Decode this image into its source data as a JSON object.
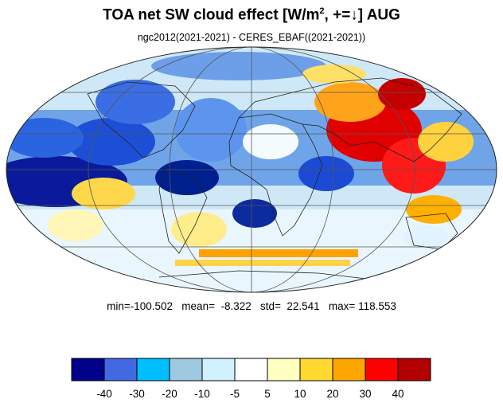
{
  "title": {
    "main": "TOA net SW cloud effect [W/m",
    "sup": "2",
    "rest": ", +=↓]  AUG"
  },
  "subtitle": "ngc2012(2021-2021) - CERES_EBAF((2021-2021))",
  "stats": {
    "text": "min=-100.502   mean=  -8.322   std=  22.541   max= 118.553",
    "min": -100.502,
    "mean": -8.322,
    "std": 22.541,
    "max": 118.553
  },
  "map": {
    "projection": "mollweide",
    "land_color": "#ffffff",
    "graticule_color": "#555555"
  },
  "colorbar": {
    "colors": [
      "#00008b",
      "#4169e1",
      "#00bfff",
      "#9ecae1",
      "#d2f1ff",
      "#ffffff",
      "#ffffc0",
      "#ffd92f",
      "#ffa500",
      "#ff0000",
      "#b30000"
    ],
    "labels": [
      "-40",
      "-30",
      "-20",
      "-10",
      "-5",
      "5",
      "10",
      "20",
      "30",
      "40"
    ]
  }
}
